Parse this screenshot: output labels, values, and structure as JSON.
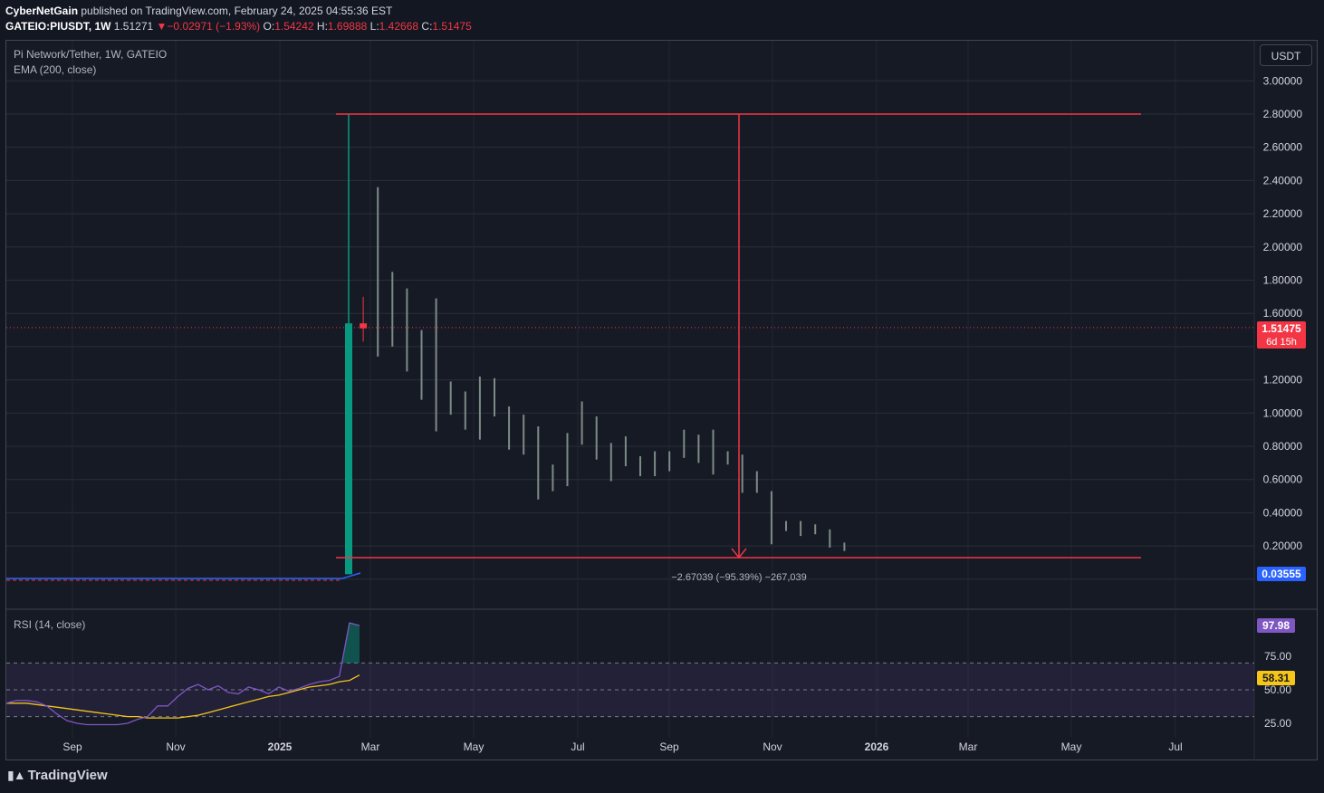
{
  "header": {
    "author": "CyberNetGain",
    "published_text": " published on TradingView.com, February 24, 2025 04:55:36 EST",
    "symbol": "GATEIO:PIUSDT, 1W",
    "last": "1.51271",
    "change": "−0.02971 (−1.93%)",
    "open_label": "O:",
    "open": "1.54242",
    "high_label": "H:",
    "high": "1.69888",
    "low_label": "L:",
    "low": "1.42668",
    "close_label": "C:",
    "close": "1.51475"
  },
  "legend": {
    "title": "Pi Network/Tether, 1W, GATEIO",
    "ema": "EMA (200, close)",
    "rsi": "RSI (14, close)"
  },
  "currency_button": "USDT",
  "brand": "TradingView",
  "colors": {
    "background": "#161a25",
    "up": "#089981",
    "down": "#f23645",
    "bar_neutral": "#7c8c85",
    "measure": "#f23645",
    "ema": "#2962ff",
    "rsi": "#7e57c2",
    "rsi_ma": "#f5c518"
  },
  "chart_data": [
    {
      "type": "candlestick",
      "title": "Pi Network/Tether, 1W, GATEIO",
      "x_ticks": [
        "Sep",
        "Nov",
        "2025",
        "Mar",
        "May",
        "Jul",
        "Sep",
        "Nov",
        "2026",
        "Mar",
        "May",
        "Jul"
      ],
      "y_ticks": [
        "3.00000",
        "2.80000",
        "2.60000",
        "2.40000",
        "2.20000",
        "2.00000",
        "1.80000",
        "1.60000",
        "1.20000",
        "1.00000",
        "0.80000",
        "0.60000",
        "0.40000",
        "0.20000"
      ],
      "ylim": [
        0,
        3.1
      ],
      "candles": [
        {
          "o": 0.03,
          "h": 2.8,
          "l": 0.03,
          "c": 1.54,
          "dir": "up"
        },
        {
          "o": 1.54,
          "h": 1.7,
          "l": 1.43,
          "c": 1.51,
          "dir": "down"
        },
        {
          "h": 2.36,
          "l": 1.34
        },
        {
          "h": 1.85,
          "l": 1.4
        },
        {
          "h": 1.75,
          "l": 1.25
        },
        {
          "h": 1.5,
          "l": 1.08
        },
        {
          "h": 1.69,
          "l": 0.89
        },
        {
          "h": 1.19,
          "l": 0.99
        },
        {
          "h": 1.13,
          "l": 0.9
        },
        {
          "h": 1.22,
          "l": 0.84
        },
        {
          "h": 1.21,
          "l": 0.98
        },
        {
          "h": 1.04,
          "l": 0.78
        },
        {
          "h": 0.99,
          "l": 0.75
        },
        {
          "h": 0.92,
          "l": 0.48
        },
        {
          "h": 0.69,
          "l": 0.53
        },
        {
          "h": 0.88,
          "l": 0.56
        },
        {
          "h": 1.07,
          "l": 0.81
        },
        {
          "h": 0.98,
          "l": 0.72
        },
        {
          "h": 0.82,
          "l": 0.59
        },
        {
          "h": 0.86,
          "l": 0.68
        },
        {
          "h": 0.74,
          "l": 0.62
        },
        {
          "h": 0.77,
          "l": 0.62
        },
        {
          "h": 0.77,
          "l": 0.65
        },
        {
          "h": 0.9,
          "l": 0.73
        },
        {
          "h": 0.87,
          "l": 0.7
        },
        {
          "h": 0.9,
          "l": 0.63
        },
        {
          "h": 0.77,
          "l": 0.69
        },
        {
          "h": 0.75,
          "l": 0.52
        },
        {
          "h": 0.65,
          "l": 0.52
        },
        {
          "h": 0.53,
          "l": 0.21
        },
        {
          "h": 0.35,
          "l": 0.29
        },
        {
          "h": 0.35,
          "l": 0.26
        },
        {
          "h": 0.33,
          "l": 0.27
        },
        {
          "h": 0.3,
          "l": 0.19
        },
        {
          "h": 0.22,
          "l": 0.17
        }
      ],
      "current_price": "1.51475",
      "countdown": "6d 15h",
      "ema_value": "0.03555",
      "measure": {
        "from": 2.8,
        "to": 0.13,
        "label": "−2.67039 (−95.39%) −267,039"
      }
    },
    {
      "type": "line",
      "title": "RSI (14, close)",
      "y_ticks": [
        "75.00",
        "50.00",
        "25.00"
      ],
      "ylim": [
        18,
        100
      ],
      "band": [
        30,
        70
      ],
      "series": [
        {
          "values": [
            40,
            42,
            42,
            41,
            38,
            32,
            27,
            25,
            24,
            24,
            24,
            24,
            25,
            28,
            30,
            38,
            38,
            45,
            51,
            54,
            50,
            53,
            48,
            47,
            52,
            50,
            47,
            52,
            49,
            51,
            54,
            56,
            57,
            60,
            100,
            98
          ]
        },
        {
          "values": [
            40,
            40,
            40,
            39,
            38,
            37,
            36,
            35,
            34,
            33,
            32,
            31,
            30,
            30,
            29,
            29,
            29,
            29,
            30,
            31,
            33,
            35,
            37,
            39,
            41,
            43,
            45,
            46,
            48,
            50,
            52,
            53,
            54,
            56,
            57,
            61
          ]
        }
      ],
      "rsi_value": "97.98",
      "ma_value": "58.31"
    }
  ]
}
